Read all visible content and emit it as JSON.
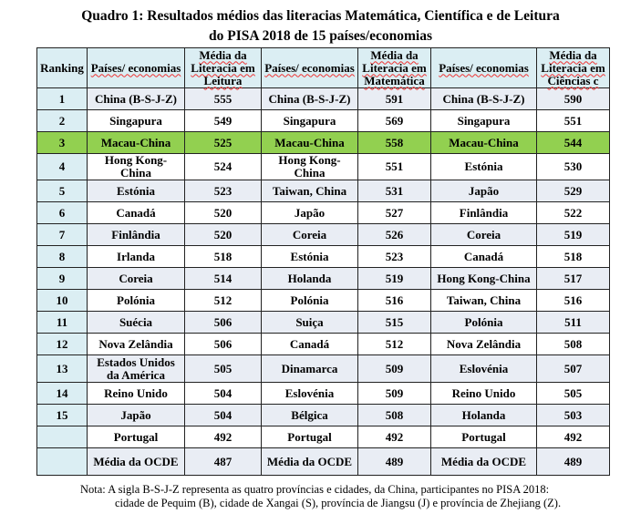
{
  "title_line1": "Quadro 1: Resultados médios das literacias Matemática, Científica e de Leitura",
  "title_line2": "do PISA 2018 de 15 países/economias",
  "headers": [
    "Ranking",
    "Países/ economias",
    "Média da Literacia em Leitura",
    "Países/ economias",
    "Média da Literacia em Matemática",
    "Países/ economias",
    "Média da Literacia em Ciências c"
  ],
  "highlight_color": "#92d050",
  "rows": [
    {
      "rank": "1",
      "c1": "China (B-S-J-Z)",
      "v1": "555",
      "c2": "China (B-S-J-Z)",
      "v2": "591",
      "c3": "China (B-S-J-Z)",
      "v3": "590"
    },
    {
      "rank": "2",
      "c1": "Singapura",
      "v1": "549",
      "c2": "Singapura",
      "v2": "569",
      "c3": "Singapura",
      "v3": "551"
    },
    {
      "rank": "3",
      "c1": "Macau-China",
      "v1": "525",
      "c2": "Macau-China",
      "v2": "558",
      "c3": "Macau-China",
      "v3": "544"
    },
    {
      "rank": "4",
      "c1": "Hong Kong-China",
      "v1": "524",
      "c2": "Hong Kong-China",
      "v2": "551",
      "c3": "Estónia",
      "v3": "530"
    },
    {
      "rank": "5",
      "c1": "Estónia",
      "v1": "523",
      "c2": "Taiwan, China",
      "v2": "531",
      "c3": "Japão",
      "v3": "529"
    },
    {
      "rank": "6",
      "c1": "Canadá",
      "v1": "520",
      "c2": "Japão",
      "v2": "527",
      "c3": "Finlândia",
      "v3": "522"
    },
    {
      "rank": "7",
      "c1": "Finlândia",
      "v1": "520",
      "c2": "Coreia",
      "v2": "526",
      "c3": "Coreia",
      "v3": "519"
    },
    {
      "rank": "8",
      "c1": "Irlanda",
      "v1": "518",
      "c2": "Estónia",
      "v2": "523",
      "c3": "Canadá",
      "v3": "518"
    },
    {
      "rank": "9",
      "c1": "Coreia",
      "v1": "514",
      "c2": "Holanda",
      "v2": "519",
      "c3": "Hong Kong-China",
      "v3": "517"
    },
    {
      "rank": "10",
      "c1": "Polónia",
      "v1": "512",
      "c2": "Polónia",
      "v2": "516",
      "c3": "Taiwan, China",
      "v3": "516"
    },
    {
      "rank": "11",
      "c1": "Suécia",
      "v1": "506",
      "c2": "Suiça",
      "v2": "515",
      "c3": "Polónia",
      "v3": "511"
    },
    {
      "rank": "12",
      "c1": "Nova Zelândia",
      "v1": "506",
      "c2": "Canadá",
      "v2": "512",
      "c3": "Nova Zelândia",
      "v3": "508"
    },
    {
      "rank": "13",
      "c1": "Estados Unidos da América",
      "v1": "505",
      "c2": "Dinamarca",
      "v2": "509",
      "c3": "Eslovénia",
      "v3": "507"
    },
    {
      "rank": "14",
      "c1": "Reino Unido",
      "v1": "504",
      "c2": "Eslovénia",
      "v2": "509",
      "c3": "Reino Unido",
      "v3": "505"
    },
    {
      "rank": "15",
      "c1": "Japão",
      "v1": "504",
      "c2": "Bélgica",
      "v2": "508",
      "c3": "Holanda",
      "v3": "503"
    },
    {
      "rank": "",
      "c1": "Portugal",
      "v1": "492",
      "c2": "Portugal",
      "v2": "492",
      "c3": "Portugal",
      "v3": "492"
    },
    {
      "rank": "",
      "c1": "Média da OCDE",
      "v1": "487",
      "c2": "Média da OCDE",
      "v2": "489",
      "c3": "Média da OCDE",
      "v3": "489"
    }
  ],
  "note_line1": "Nota: A sigla B-S-J-Z representa as quatro províncias e cidades, da China, participantes no PISA 2018:",
  "note_line2": "cidade de Pequim (B), cidade de Xangai (S), província de Jiangsu (J) e província de Zhejiang (Z)."
}
